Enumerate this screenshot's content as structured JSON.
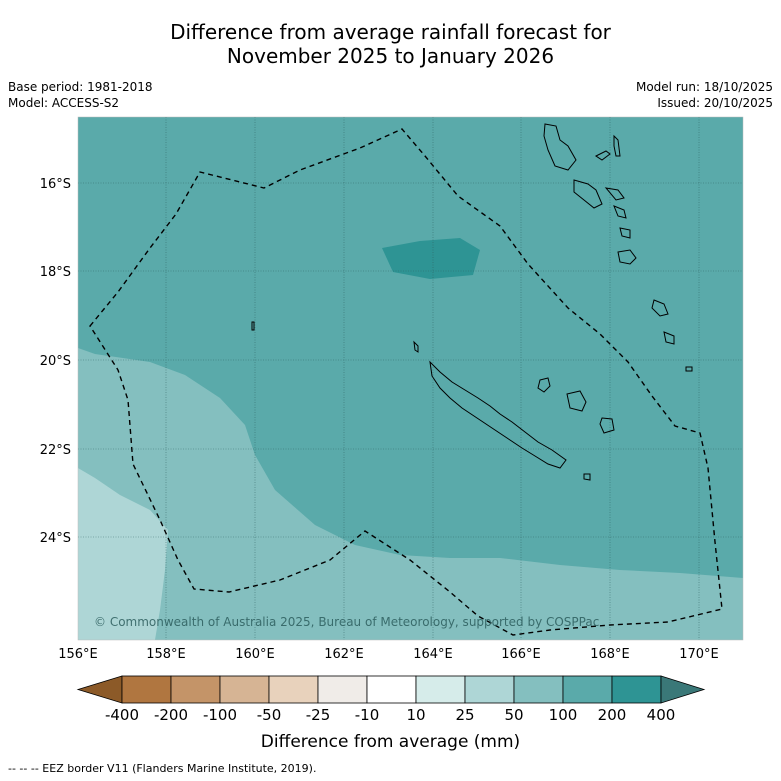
{
  "title": {
    "line1": "Difference from average rainfall forecast for",
    "line2": "November 2025 to January 2026"
  },
  "meta": {
    "base_period": "Base period: 1981-2018",
    "model": "Model: ACCESS-S2",
    "model_run": "Model run: 18/10/2025",
    "issued": "Issued: 20/10/2025"
  },
  "map": {
    "lon_labels": [
      "156°E",
      "158°E",
      "160°E",
      "162°E",
      "164°E",
      "166°E",
      "168°E",
      "170°E"
    ],
    "lat_labels": [
      "16°S",
      "18°S",
      "20°S",
      "22°S",
      "24°S"
    ],
    "copyright": "© Commonwealth of Australia 2025, Bureau of Meteorology, supported by COSPPac",
    "colors": {
      "band_100_200": "#5aaaaa",
      "band_200_400": "#2e9494",
      "band_50_100": "#84bfbf",
      "band_25_50": "#aed6d6"
    }
  },
  "colorbar": {
    "ticks": [
      "-400",
      "-200",
      "-100",
      "-50",
      "-25",
      "-10",
      "10",
      "25",
      "50",
      "100",
      "200",
      "400"
    ],
    "colors": [
      "#8c5a28",
      "#b07640",
      "#c49468",
      "#d6b494",
      "#e8d2bc",
      "#f0ece8",
      "#ffffff",
      "#d6ecea",
      "#aed6d6",
      "#84bfbf",
      "#5aaaaa",
      "#2e9494",
      "#3a7878"
    ],
    "label": "Difference from average (mm)"
  },
  "footer": "--  --  -- EEZ border V11 (Flanders Marine Institute, 2019)."
}
